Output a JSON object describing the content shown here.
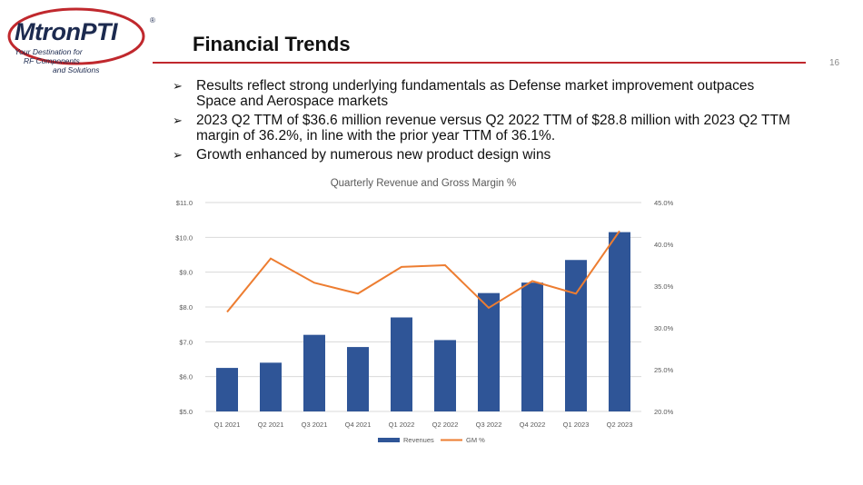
{
  "logo": {
    "name": "MtronPTI",
    "registered": "®",
    "tagline": [
      "Your Destination for",
      "RF Components",
      "and Solutions"
    ],
    "colors": {
      "navy": "#1c2a4f",
      "red": "#c0282d"
    }
  },
  "slide": {
    "title": "Financial Trends",
    "page_number": "16",
    "bullet_icon": "arrowhead-bullet-icon",
    "bullets": [
      "Results reflect strong underlying fundamentals as Defense market improvement outpaces Space and Aerospace markets",
      "2023 Q2 TTM of $36.6 million revenue versus Q2 2022 TTM of $28.8 million with 2023 Q2 TTM margin of 36.2%, in line with the prior year TTM of 36.1%.",
      "Growth enhanced by numerous new product design wins"
    ]
  },
  "chart_data": {
    "type": "bar",
    "title": "Quarterly Revenue and Gross Margin %",
    "categories": [
      "Q1 2021",
      "Q2 2021",
      "Q3 2021",
      "Q4 2021",
      "Q1 2022",
      "Q2 2022",
      "Q3 2022",
      "Q4 2022",
      "Q1 2023",
      "Q2 2023"
    ],
    "series": [
      {
        "name": "Revenues",
        "type": "bar",
        "axis": "left",
        "color": "#2f5597",
        "values": [
          6.25,
          6.4,
          7.2,
          6.85,
          7.7,
          7.05,
          8.4,
          8.7,
          9.35,
          10.15
        ]
      },
      {
        "name": "GM %",
        "type": "line",
        "axis": "right",
        "color": "#ed7d31",
        "values": [
          31.9,
          38.3,
          35.4,
          34.1,
          37.3,
          37.5,
          32.4,
          35.6,
          34.1,
          41.6
        ]
      }
    ],
    "y_left": {
      "min": 5.0,
      "max": 11.0,
      "ticks": [
        "$5.0",
        "$6.0",
        "$7.0",
        "$8.0",
        "$9.0",
        "$10.0",
        "$11.0"
      ]
    },
    "y_right": {
      "min": 20.0,
      "max": 45.0,
      "ticks": [
        "20.0%",
        "25.0%",
        "30.0%",
        "35.0%",
        "40.0%",
        "45.0%"
      ]
    },
    "grid": true,
    "legend_position": "bottom"
  }
}
